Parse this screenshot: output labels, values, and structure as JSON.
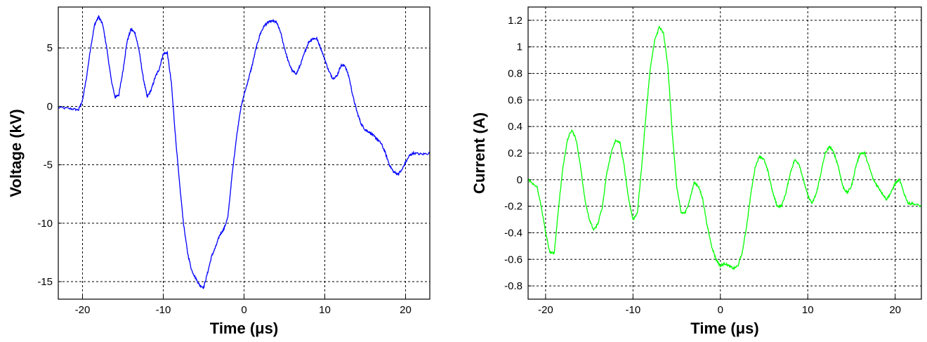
{
  "chart_data": [
    {
      "type": "line",
      "title": "",
      "xlabel": "Time (μs)",
      "ylabel": "Voltage (kV)",
      "xlim": [
        -23,
        23
      ],
      "ylim": [
        -16.5,
        8.5
      ],
      "xticks": [
        -20,
        -10,
        0,
        10,
        20
      ],
      "xtick_labels": [
        "-20",
        "-10",
        "0",
        "10",
        "20"
      ],
      "yticks": [
        -15,
        -10,
        -5,
        0,
        5
      ],
      "ytick_labels": [
        "-15",
        "-10",
        "-5",
        "0",
        "5"
      ],
      "grid": true,
      "series": [
        {
          "color": "#0000ff",
          "x": [
            -23,
            -21.5,
            -20.5,
            -20,
            -19.5,
            -19,
            -18.5,
            -18,
            -17.5,
            -17,
            -16.5,
            -16,
            -15.5,
            -15,
            -14.5,
            -14,
            -13.5,
            -13,
            -12.5,
            -12,
            -11.5,
            -11,
            -10.5,
            -10,
            -9.5,
            -9,
            -8.5,
            -8,
            -7.5,
            -7,
            -6.5,
            -6,
            -5.5,
            -5,
            -4.5,
            -4,
            -3.5,
            -3,
            -2.5,
            -2,
            -1.5,
            -1,
            -0.5,
            0,
            0.5,
            1,
            1.5,
            2,
            2.5,
            3,
            3.5,
            4,
            4.5,
            5,
            5.5,
            6,
            6.5,
            7,
            7.5,
            8,
            8.5,
            9,
            9.5,
            10,
            10.5,
            11,
            11.5,
            12,
            12.5,
            13,
            13.5,
            14,
            14.5,
            15,
            15.5,
            16,
            16.5,
            17,
            17.5,
            18,
            18.5,
            19,
            19.5,
            20,
            20.5,
            21,
            22,
            23
          ],
          "y": [
            -0.1,
            -0.2,
            -0.3,
            0.5,
            2.5,
            5.0,
            7.0,
            7.7,
            7.0,
            5.0,
            2.5,
            0.8,
            1.0,
            3.0,
            5.5,
            6.6,
            6.3,
            4.8,
            2.5,
            0.8,
            1.4,
            2.5,
            3.2,
            4.5,
            4.6,
            2.0,
            -2.5,
            -6.5,
            -10.0,
            -12.5,
            -14.0,
            -14.7,
            -15.3,
            -15.5,
            -14.2,
            -12.8,
            -12.0,
            -11.0,
            -10.5,
            -9.5,
            -6.0,
            -3.0,
            -0.5,
            1.0,
            2.2,
            3.5,
            5.0,
            6.2,
            6.9,
            7.2,
            7.3,
            7.2,
            6.4,
            5.0,
            3.8,
            3.0,
            2.8,
            3.6,
            4.6,
            5.5,
            5.8,
            5.8,
            5.0,
            4.0,
            3.0,
            2.4,
            2.6,
            3.5,
            3.5,
            2.5,
            0.8,
            -0.5,
            -1.5,
            -2.0,
            -2.2,
            -2.5,
            -2.8,
            -3.2,
            -4.0,
            -5.0,
            -5.6,
            -5.8,
            -5.5,
            -4.8,
            -4.2,
            -4.0,
            -4.1,
            -4.0
          ]
        }
      ]
    },
    {
      "type": "line",
      "title": "",
      "xlabel": "Time (μs)",
      "ylabel": "Current (A)",
      "xlim": [
        -22,
        23
      ],
      "ylim": [
        -0.9,
        1.3
      ],
      "xticks": [
        -20,
        -10,
        0,
        10,
        20
      ],
      "xtick_labels": [
        "-20",
        "-10",
        "0",
        "10",
        "20"
      ],
      "yticks": [
        -0.8,
        -0.6,
        -0.4,
        -0.2,
        0,
        0.2,
        0.4,
        0.6,
        0.8,
        1,
        1.2
      ],
      "ytick_labels": [
        "-0.8",
        "-0.6",
        "-0.4",
        "-0.2",
        "0",
        "0.2",
        "0.4",
        "0.6",
        "0.8",
        "1",
        "1.2"
      ],
      "grid": true,
      "series": [
        {
          "color": "#00ff00",
          "x": [
            -22,
            -21,
            -20.5,
            -20,
            -19.5,
            -19,
            -18.5,
            -18,
            -17.5,
            -17,
            -16.5,
            -16,
            -15.5,
            -15,
            -14.5,
            -14,
            -13.5,
            -13,
            -12.5,
            -12,
            -11.5,
            -11,
            -10.5,
            -10,
            -9.5,
            -9,
            -8.5,
            -8,
            -7.5,
            -7,
            -6.5,
            -6,
            -5.5,
            -5,
            -4.5,
            -4,
            -3.5,
            -3,
            -2.5,
            -2,
            -1.5,
            -1,
            -0.5,
            0,
            0.5,
            1,
            1.5,
            2,
            2.5,
            3,
            3.5,
            4,
            4.5,
            5,
            5.5,
            6,
            6.5,
            7,
            7.5,
            8,
            8.5,
            9,
            9.5,
            10,
            10.5,
            11,
            11.5,
            12,
            12.5,
            13,
            13.5,
            14,
            14.5,
            15,
            15.5,
            16,
            16.5,
            17,
            17.5,
            18,
            18.5,
            19,
            19.5,
            20,
            20.5,
            21,
            21.5,
            22,
            23
          ],
          "y": [
            0.0,
            -0.05,
            -0.2,
            -0.4,
            -0.55,
            -0.55,
            -0.2,
            0.1,
            0.3,
            0.38,
            0.3,
            0.1,
            -0.15,
            -0.3,
            -0.38,
            -0.33,
            -0.2,
            0.05,
            0.2,
            0.3,
            0.28,
            0.1,
            -0.15,
            -0.3,
            -0.25,
            0.1,
            0.5,
            0.85,
            1.05,
            1.15,
            1.1,
            0.85,
            0.35,
            -0.05,
            -0.25,
            -0.25,
            -0.15,
            -0.02,
            -0.05,
            -0.15,
            -0.35,
            -0.5,
            -0.6,
            -0.65,
            -0.63,
            -0.65,
            -0.67,
            -0.65,
            -0.55,
            -0.35,
            -0.1,
            0.1,
            0.18,
            0.15,
            0.05,
            -0.1,
            -0.2,
            -0.2,
            -0.1,
            0.05,
            0.15,
            0.12,
            0.0,
            -0.12,
            -0.18,
            -0.1,
            0.05,
            0.2,
            0.25,
            0.2,
            0.1,
            -0.05,
            -0.1,
            -0.05,
            0.1,
            0.2,
            0.2,
            0.1,
            0.0,
            -0.05,
            -0.1,
            -0.15,
            -0.1,
            -0.03,
            0.0,
            -0.1,
            -0.18,
            -0.18,
            -0.2
          ]
        }
      ]
    }
  ]
}
